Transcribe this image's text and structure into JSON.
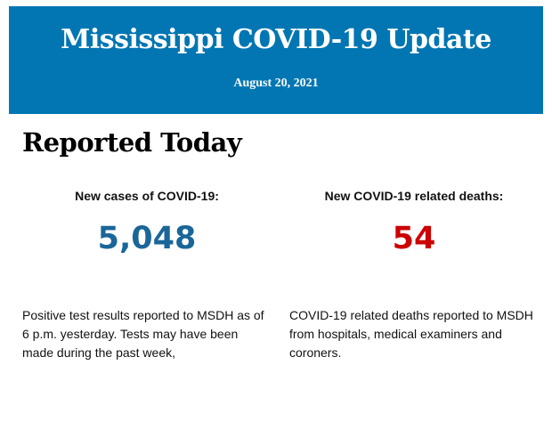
{
  "header": {
    "title": "Mississippi COVID-19 Update",
    "date": "August 20, 2021",
    "background_color": "#0176b2"
  },
  "section": {
    "heading": "Reported Today"
  },
  "stats": [
    {
      "label": "New cases of COVID-19:",
      "value": "5,048",
      "color": "#1a6699",
      "description": "Positive test results reported to MSDH as of 6 p.m. yesterday. Tests may have been made during the past week,"
    },
    {
      "label": "New COVID-19 related deaths:",
      "value": "54",
      "color": "#cc0000",
      "description": "COVID-19 related deaths reported to MSDH from hospitals, medical examiners and coroners."
    }
  ]
}
